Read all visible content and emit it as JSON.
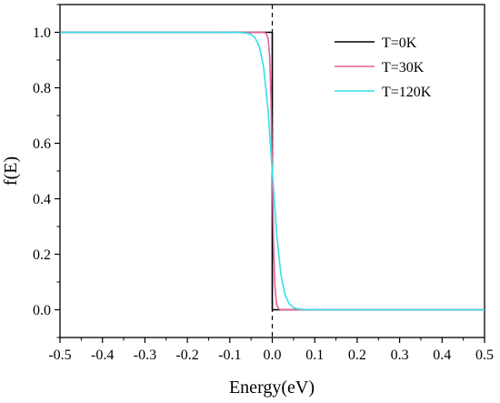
{
  "chart_data": {
    "type": "line",
    "xlabel": "Energy(eV)",
    "ylabel": "f(E)",
    "xlim": [
      -0.5,
      0.5
    ],
    "ylim": [
      -0.1,
      1.1
    ],
    "x_ticks": [
      -0.5,
      -0.4,
      -0.3,
      -0.2,
      -0.1,
      0.0,
      0.1,
      0.2,
      0.3,
      0.4,
      0.5
    ],
    "x_tick_labels": [
      "-0.5",
      "-0.4",
      "-0.3",
      "-0.2",
      "-0.1",
      "0.0",
      "0.1",
      "0.2",
      "0.3",
      "0.4",
      "0.5"
    ],
    "y_ticks": [
      0.0,
      0.2,
      0.4,
      0.6,
      0.8,
      1.0
    ],
    "y_tick_labels": [
      "0.0",
      "0.2",
      "0.4",
      "0.6",
      "0.8",
      "1.0"
    ],
    "vertical_reference_line": {
      "x": 0.0,
      "style": "dashed",
      "color": "#000000"
    },
    "legend_position": "top-right",
    "grid": false,
    "series": [
      {
        "name": "T=0K",
        "color": "#000000",
        "x": [
          -0.5,
          -0.001,
          0.0,
          0.0,
          0.001,
          0.5
        ],
        "y": [
          1.0,
          1.0,
          1.0,
          0.0,
          0.0,
          0.0
        ]
      },
      {
        "name": "T=30K",
        "color": "#e8609a",
        "x": [
          -0.5,
          -0.03,
          -0.02,
          -0.015,
          -0.01,
          -0.006,
          -0.003,
          0.0,
          0.003,
          0.006,
          0.01,
          0.015,
          0.02,
          0.03,
          0.5
        ],
        "y": [
          1.0,
          1.0,
          0.9996,
          0.997,
          0.98,
          0.91,
          0.76,
          0.5,
          0.24,
          0.09,
          0.02,
          0.003,
          0.0004,
          0.0,
          0.0
        ]
      },
      {
        "name": "T=120K",
        "color": "#33e0e8",
        "x": [
          -0.5,
          -0.12,
          -0.1,
          -0.08,
          -0.06,
          -0.05,
          -0.04,
          -0.03,
          -0.02,
          -0.01,
          0.0,
          0.01,
          0.02,
          0.03,
          0.04,
          0.05,
          0.06,
          0.08,
          0.1,
          0.12,
          0.5
        ],
        "y": [
          1.0,
          1.0,
          0.9999,
          0.9996,
          0.997,
          0.992,
          0.979,
          0.946,
          0.87,
          0.72,
          0.5,
          0.28,
          0.13,
          0.054,
          0.021,
          0.008,
          0.003,
          0.0004,
          0.0001,
          0.0,
          0.0
        ]
      }
    ]
  }
}
